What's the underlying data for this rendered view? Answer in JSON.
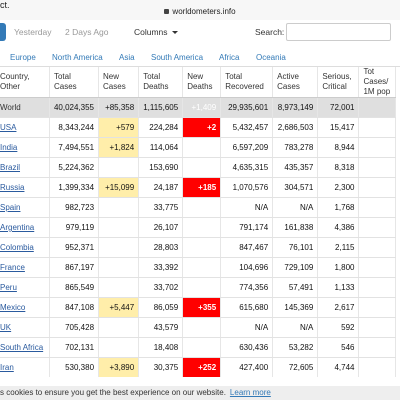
{
  "browser": {
    "tab_text": "ct.",
    "url": "worldometers.info"
  },
  "controls": {
    "yesterday": "Yesterday",
    "two_days_ago": "2 Days Ago",
    "columns": "Columns",
    "search_label": "Search:"
  },
  "tabs": [
    "Europe",
    "North America",
    "Asia",
    "South America",
    "Africa",
    "Oceania"
  ],
  "table": {
    "headers": [
      "Country, Other",
      "Total Cases",
      "New Cases",
      "Total Deaths",
      "New Deaths",
      "Total Recovered",
      "Active Cases",
      "Serious, Critical",
      "Tot Cases/ 1M pop"
    ],
    "rows": [
      [
        "World",
        "40,024,355",
        "+85,358",
        "1,115,605",
        "+1,409",
        "29,935,601",
        "8,973,149",
        "72,001"
      ],
      [
        "USA",
        "8,343,244",
        "+579",
        "224,284",
        "+2",
        "5,432,457",
        "2,686,503",
        "15,417"
      ],
      [
        "India",
        "7,494,551",
        "+1,824",
        "114,064",
        null,
        "6,597,209",
        "783,278",
        "8,944"
      ],
      [
        "Brazil",
        "5,224,362",
        null,
        "153,690",
        null,
        "4,635,315",
        "435,357",
        "8,318"
      ],
      [
        "Russia",
        "1,399,334",
        "+15,099",
        "24,187",
        "+185",
        "1,070,576",
        "304,571",
        "2,300"
      ],
      [
        "Spain",
        "982,723",
        null,
        "33,775",
        null,
        "N/A",
        "N/A",
        "1,768"
      ],
      [
        "Argentina",
        "979,119",
        null,
        "26,107",
        null,
        "791,174",
        "161,838",
        "4,386"
      ],
      [
        "Colombia",
        "952,371",
        null,
        "28,803",
        null,
        "847,467",
        "76,101",
        "2,115"
      ],
      [
        "France",
        "867,197",
        null,
        "33,392",
        null,
        "104,696",
        "729,109",
        "1,800"
      ],
      [
        "Peru",
        "865,549",
        null,
        "33,702",
        null,
        "774,356",
        "57,491",
        "1,133"
      ],
      [
        "Mexico",
        "847,108",
        "+5,447",
        "86,059",
        "+355",
        "615,680",
        "145,369",
        "2,617"
      ],
      [
        "UK",
        "705,428",
        null,
        "43,579",
        null,
        "N/A",
        "N/A",
        "592"
      ],
      [
        "South Africa",
        "702,131",
        null,
        "18,408",
        null,
        "630,436",
        "53,282",
        "546"
      ],
      [
        "Iran",
        "530,380",
        "+3,890",
        "30,375",
        "+252",
        "427,400",
        "72,605",
        "4,744"
      ]
    ]
  },
  "cookie_bar": {
    "text": "s cookies to ensure you get the best experience on our website.",
    "link": "Learn more"
  }
}
